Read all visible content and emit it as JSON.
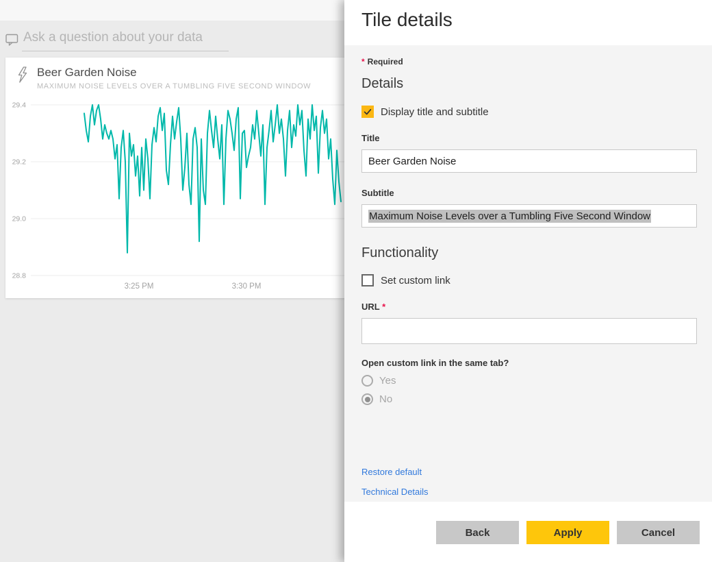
{
  "colors": {
    "chart_line_teal": "#01b8aa",
    "checkbox_checked_amber": "#fbb713",
    "apply_button_yellow": "#fec60b",
    "link_blue": "#3179dc",
    "required_star_red": "#e8124b",
    "text_selection_gray": "#bfbfbf",
    "panel_body_gray": "#f4f4f4"
  },
  "dashboard": {
    "qna_placeholder": "Ask a question about your data",
    "tile": {
      "title": "Beer Garden Noise",
      "subtitle": "MAXIMUM NOISE LEVELS OVER A TUMBLING FIVE SECOND WINDOW"
    }
  },
  "chart_data": {
    "type": "line",
    "title": "Beer Garden Noise",
    "subtitle": "Maximum Noise Levels over a Tumbling Five Second Window",
    "xlabel": "",
    "ylabel": "",
    "ylim": [
      28.8,
      29.4
    ],
    "grid": true,
    "legend": false,
    "line_color": "#01b8aa",
    "y_ticks": [
      {
        "label": "29.4",
        "value": 29.4
      },
      {
        "label": "29.2",
        "value": 29.2
      },
      {
        "label": "29.0",
        "value": 29.0
      },
      {
        "label": "28.8",
        "value": 28.8
      }
    ],
    "x_ticks": [
      {
        "label": "3:25 PM"
      },
      {
        "label": "3:30 PM"
      }
    ],
    "values": [
      29.37,
      29.31,
      29.27,
      29.36,
      29.4,
      29.33,
      29.38,
      29.4,
      29.35,
      29.28,
      29.33,
      29.3,
      29.28,
      29.31,
      29.28,
      29.21,
      29.26,
      29.07,
      29.25,
      29.31,
      29.2,
      28.88,
      29.3,
      29.22,
      29.26,
      29.15,
      29.22,
      29.08,
      29.25,
      29.1,
      29.28,
      29.21,
      29.07,
      29.26,
      29.32,
      29.27,
      29.36,
      29.39,
      29.31,
      29.37,
      29.17,
      29.12,
      29.26,
      29.36,
      29.28,
      29.34,
      29.39,
      29.28,
      29.1,
      29.18,
      29.3,
      29.12,
      29.05,
      29.28,
      29.32,
      29.25,
      28.92,
      29.28,
      29.1,
      29.05,
      29.3,
      29.38,
      29.31,
      29.25,
      29.36,
      29.28,
      29.21,
      29.33,
      29.05,
      29.28,
      29.38,
      29.35,
      29.3,
      29.24,
      29.35,
      29.39,
      29.07,
      29.3,
      29.31,
      29.18,
      29.22,
      29.25,
      29.33,
      29.28,
      29.38,
      29.3,
      29.22,
      29.33,
      29.05,
      29.25,
      29.31,
      29.38,
      29.27,
      29.33,
      29.4,
      29.3,
      29.35,
      29.28,
      29.15,
      29.31,
      29.38,
      29.25,
      29.33,
      29.29,
      29.4,
      29.33,
      29.38,
      29.24,
      29.15,
      29.35,
      29.28,
      29.4,
      29.31,
      29.36,
      29.16,
      29.32,
      29.38,
      29.3,
      29.35,
      29.21,
      29.28,
      29.14,
      29.05,
      29.24,
      29.13,
      29.06
    ]
  },
  "panel": {
    "title": "Tile details",
    "required_star": "*",
    "required_note": "Required",
    "details_heading": "Details",
    "display_checkbox": {
      "label": "Display title and subtitle",
      "checked": true
    },
    "title_field": {
      "label": "Title",
      "value": "Beer Garden Noise"
    },
    "subtitle_field": {
      "label": "Subtitle",
      "value": "Maximum Noise Levels over a Tumbling Five Second Window",
      "selected": true
    },
    "functionality_heading": "Functionality",
    "custom_link_checkbox": {
      "label": "Set custom link",
      "checked": false
    },
    "url_field": {
      "label": "URL",
      "required_star": "*",
      "value": ""
    },
    "open_same_tab": {
      "label": "Open custom link in the same tab?",
      "options": [
        {
          "label": "Yes",
          "selected": false
        },
        {
          "label": "No",
          "selected": true
        }
      ]
    },
    "links": [
      {
        "label": "Restore default"
      },
      {
        "label": "Technical Details"
      }
    ],
    "buttons": [
      {
        "label": "Back"
      },
      {
        "label": "Apply"
      },
      {
        "label": "Cancel"
      }
    ]
  }
}
